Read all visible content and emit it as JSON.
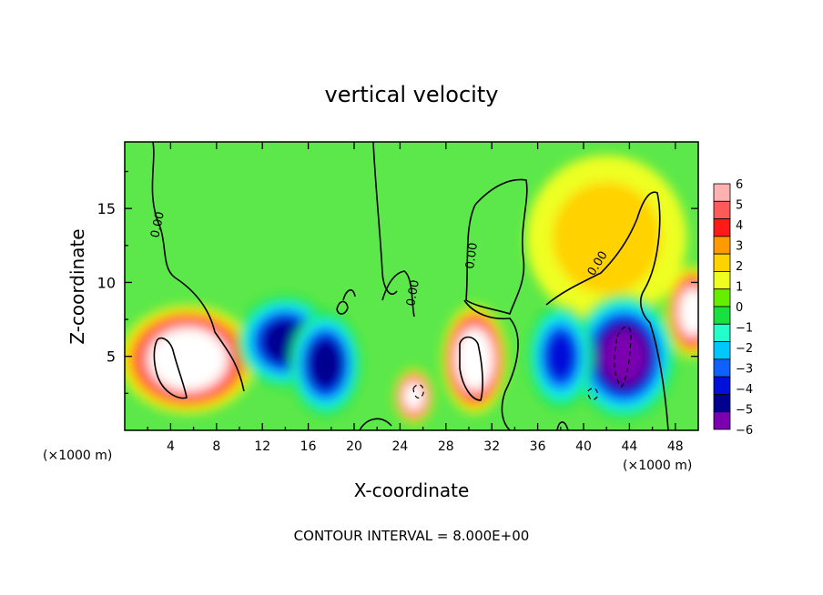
{
  "chart_data": {
    "type": "heatmap",
    "title": "vertical velocity",
    "xlabel": "X-coordinate",
    "ylabel": "Z-coordinate",
    "x_unit_left": "(×1000 m)",
    "x_unit_right": "(×1000 m)",
    "footer": "CONTOUR INTERVAL = 8.000E+00",
    "xlim": [
      0,
      50
    ],
    "ylim": [
      0,
      19.5
    ],
    "x_ticks": [
      4,
      8,
      12,
      16,
      20,
      24,
      28,
      32,
      36,
      40,
      44,
      48
    ],
    "y_ticks": [
      5,
      10,
      15
    ],
    "colorbar": {
      "levels": [
        6,
        5,
        4,
        3,
        2,
        1,
        0,
        -1,
        -2,
        -3,
        -4,
        -5,
        -6
      ],
      "colors": [
        "#ffb0b0",
        "#ff5a5a",
        "#ff1a1a",
        "#ff9a00",
        "#ffd200",
        "#eeff20",
        "#66ee00",
        "#18e040",
        "#22ffcc",
        "#00c8ff",
        "#1060ff",
        "#0010d8",
        "#000090",
        "#7a00b0"
      ]
    },
    "contour_labels": [
      "0.00",
      "0.00",
      "0.00",
      "0.00",
      "0.00"
    ],
    "background_value_color": "#5ce84a",
    "features": [
      {
        "kind": "updraft",
        "x": 5.5,
        "z": 4.8,
        "sx": 4.2,
        "sz": 2.6,
        "value": 9
      },
      {
        "kind": "updraft",
        "x": 30.5,
        "z": 4.8,
        "sx": 2.0,
        "sz": 2.6,
        "value": 9
      },
      {
        "kind": "updraft",
        "x": 25.2,
        "z": 2.3,
        "sx": 1.2,
        "sz": 1.3,
        "value": 8
      },
      {
        "kind": "updraft",
        "x": 49.5,
        "z": 8,
        "sx": 1.6,
        "sz": 2.2,
        "value": 8
      },
      {
        "kind": "updraft",
        "x": 42,
        "z": 13,
        "sx": 5,
        "sz": 4,
        "value": 1.5
      },
      {
        "kind": "downdraft",
        "x": 14,
        "z": 6,
        "sx": 3,
        "sz": 2.2,
        "value": -6
      },
      {
        "kind": "downdraft",
        "x": 17.5,
        "z": 4.5,
        "sx": 2.2,
        "sz": 2.5,
        "value": -6
      },
      {
        "kind": "downdraft",
        "x": 43.5,
        "z": 5,
        "sx": 3.2,
        "sz": 3,
        "value": -7
      },
      {
        "kind": "downdraft",
        "x": 38,
        "z": 5,
        "sx": 2,
        "sz": 2.5,
        "value": -5
      }
    ]
  }
}
